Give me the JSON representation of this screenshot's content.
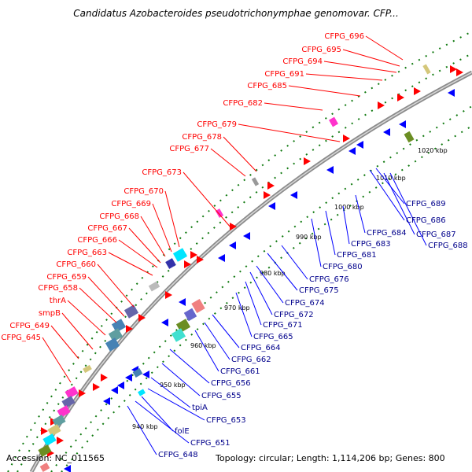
{
  "title": "Candidatus Azobacteroides pseudotrichonymphae genomovar. CFP...",
  "footer": {
    "accession": "Accession: NC_011565",
    "stats": "Topology: circular; Length: 1,114,206 bp; Genes: 800"
  },
  "colors": {
    "forward": "#ff0000",
    "reverse": "#0000ff",
    "backbone": "#8c8c8c",
    "tick": "#117a11"
  },
  "kbp_marks": [
    "940 kbp",
    "950 kbp",
    "960 kbp",
    "970 kbp",
    "980 kbp",
    "990 kbp",
    "1000 kbp",
    "1010 kbp",
    "1020 kbp"
  ],
  "forward_labels": [
    "CFPG_696",
    "CFPG_695",
    "CFPG_694",
    "CFPG_691",
    "CFPG_685",
    "CFPG_682",
    "CFPG_679",
    "CFPG_678",
    "CFPG_677",
    "CFPG_673",
    "CFPG_670",
    "CFPG_669",
    "CFPG_668",
    "CFPG_667",
    "CFPG_666",
    "CFPG_663",
    "CFPG_660",
    "CFPG_659",
    "CFPG_658",
    "thrA",
    "smpB",
    "CFPG_649",
    "CFPG_645"
  ],
  "reverse_labels": [
    "CFPG_689",
    "CFPG_686",
    "CFPG_687",
    "CFPG_688",
    "CFPG_684",
    "CFPG_683",
    "CFPG_681",
    "CFPG_680",
    "CFPG_676",
    "CFPG_675",
    "CFPG_674",
    "CFPG_672",
    "CFPG_671",
    "CFPG_665",
    "CFPG_664",
    "CFPG_662",
    "CFPG_661",
    "CFPG_656",
    "CFPG_655",
    "tpiA",
    "CFPG_653",
    "folE",
    "CFPG_651",
    "CFPG_648"
  ]
}
